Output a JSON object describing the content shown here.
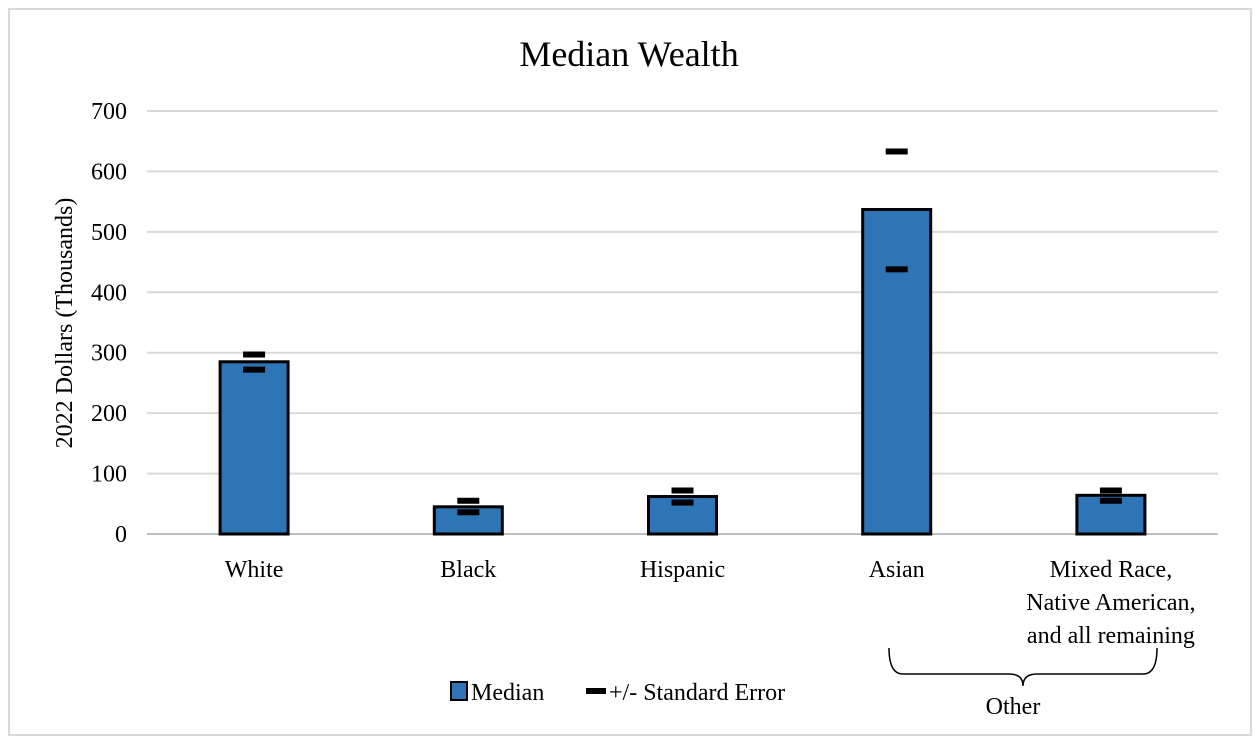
{
  "chart_data": {
    "type": "bar",
    "title": "Median Wealth",
    "ylabel": "2022 Dollars (Thousands)",
    "xlabel": "",
    "ylim": [
      0,
      700
    ],
    "yticks": [
      0,
      100,
      200,
      300,
      400,
      500,
      600,
      700
    ],
    "grid": true,
    "legend_position": "bottom",
    "categories": [
      [
        "White"
      ],
      [
        "Black"
      ],
      [
        "Hispanic"
      ],
      [
        "Asian"
      ],
      [
        "Mixed Race,",
        "Native American,",
        "and all remaining"
      ]
    ],
    "series": [
      {
        "name": "Median",
        "values": [
          285,
          45,
          62,
          537,
          64
        ],
        "color": "#2e75b6"
      },
      {
        "name": "+/- Standard Error",
        "lower": [
          272,
          36,
          52,
          438,
          55
        ],
        "upper": [
          297,
          55,
          72,
          633,
          72
        ],
        "color": "#000000"
      }
    ],
    "group_bracket": {
      "label": "Other",
      "from_category": 3,
      "to_category": 4
    }
  }
}
